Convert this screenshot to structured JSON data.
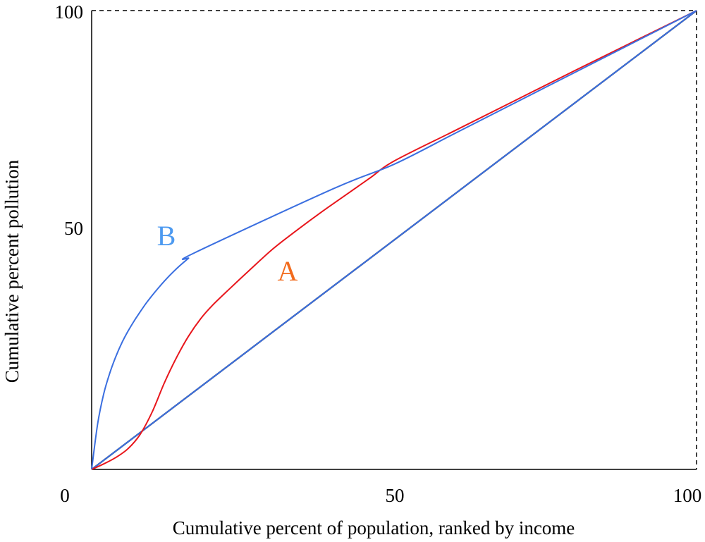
{
  "chart_data": {
    "type": "line",
    "title": "",
    "xlabel": "Cumulative percent of population, ranked by income",
    "ylabel": "Cumulative percent pollution",
    "xlim": [
      0,
      100
    ],
    "ylim": [
      0,
      100
    ],
    "x_ticks": [
      "0",
      "50",
      "100"
    ],
    "y_ticks": [
      "50",
      "100"
    ],
    "grid": false,
    "legend": "none",
    "series": [
      {
        "label": "A",
        "color": "#e8161c",
        "label_color": "#f26b1d",
        "x": [
          0,
          2,
          4,
          6,
          8,
          10,
          12,
          14,
          16,
          18,
          20,
          23,
          26,
          30,
          34,
          38,
          42,
          46,
          50,
          60,
          70,
          80,
          90,
          100
        ],
        "y": [
          0,
          1.2,
          2.6,
          4.5,
          7.6,
          12.5,
          18.8,
          24.3,
          29,
          32.8,
          35.8,
          39.6,
          43.3,
          48.1,
          52.2,
          56.1,
          59.8,
          63.5,
          67.2,
          73.8,
          80.4,
          87.0,
          93.5,
          100
        ]
      },
      {
        "label": "B",
        "color": "#3b6fe0",
        "label_color": "#4d9af0",
        "x": [
          0,
          1,
          2,
          3,
          4,
          5,
          6,
          7,
          8,
          9,
          10,
          11,
          12,
          13,
          14,
          15,
          16,
          17,
          40,
          50,
          60,
          70,
          80,
          90,
          100
        ],
        "y": [
          0,
          10,
          16.5,
          21,
          24.6,
          27.6,
          30.1,
          32.3,
          34.3,
          36.2,
          37.9,
          39.5,
          41.0,
          42.4,
          43.7,
          44.9,
          46.0,
          47.2,
          61.2,
          66.5,
          73.2,
          79.9,
          86.6,
          93.3,
          100
        ]
      },
      {
        "label": "equality",
        "color": "#000000",
        "x": [
          0,
          100
        ],
        "y": [
          0,
          100
        ]
      },
      {
        "label": "equality-blue",
        "color": "#3b6fe0",
        "x": [
          0,
          100
        ],
        "y": [
          0,
          100
        ]
      }
    ]
  }
}
